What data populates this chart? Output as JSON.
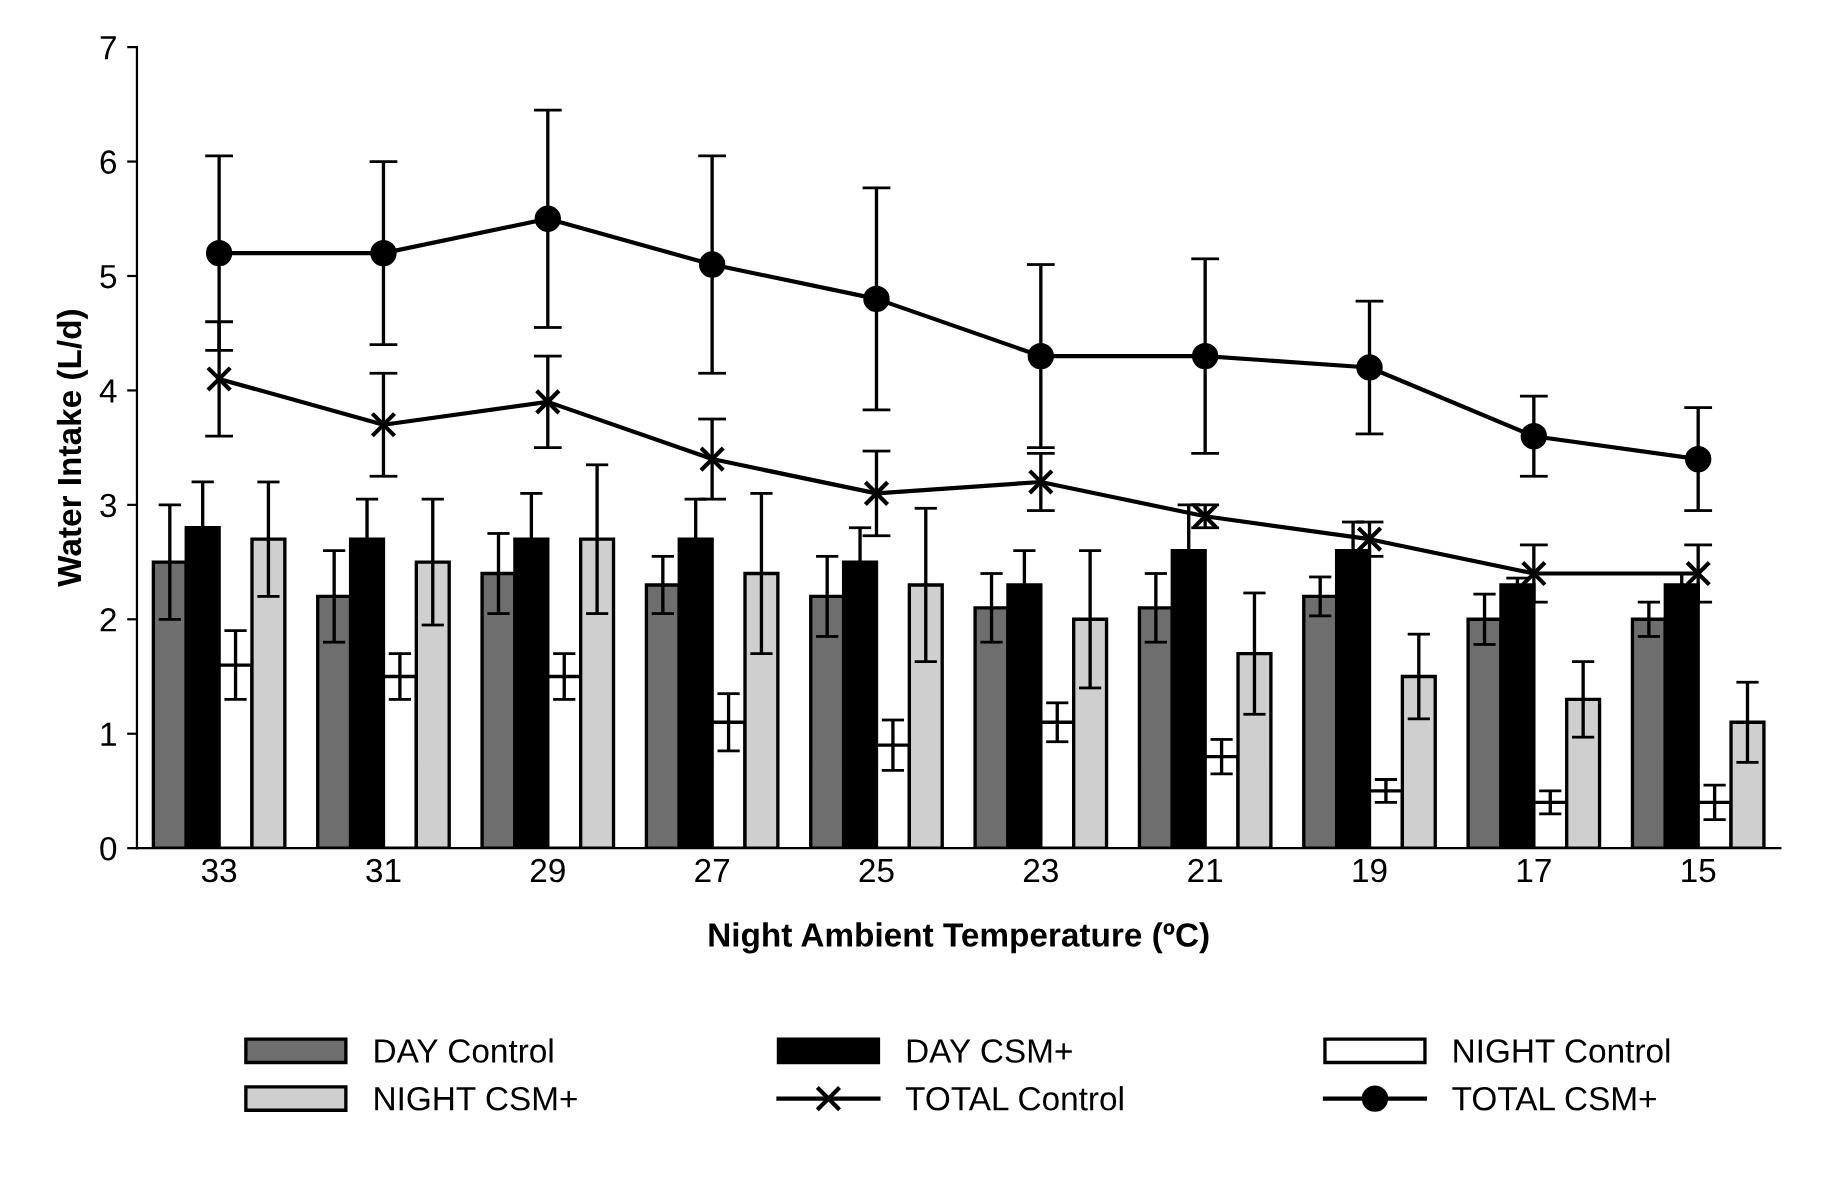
{
  "chart_data": {
    "type": "bar",
    "xlabel": "Night Ambient Temperature (ºC)",
    "ylabel": "Water Intake (L/d)",
    "categories": [
      "33",
      "31",
      "29",
      "27",
      "25",
      "23",
      "21",
      "19",
      "17",
      "15"
    ],
    "ylim": [
      0,
      7
    ],
    "yticks": [
      0,
      1,
      2,
      3,
      4,
      5,
      6,
      7
    ],
    "grid": false,
    "legend": "bottom",
    "series": [
      {
        "name": "DAY Control",
        "color": "#6e6e6e",
        "values": [
          2.5,
          2.2,
          2.4,
          2.3,
          2.2,
          2.1,
          2.1,
          2.2,
          2.0,
          2.0
        ],
        "errors": [
          0.5,
          0.4,
          0.35,
          0.25,
          0.35,
          0.3,
          0.3,
          0.17,
          0.22,
          0.15
        ]
      },
      {
        "name": "DAY CSM+",
        "color": "#000000",
        "values": [
          2.8,
          2.7,
          2.7,
          2.7,
          2.5,
          2.3,
          2.6,
          2.6,
          2.3,
          2.3
        ],
        "errors": [
          0.4,
          0.35,
          0.4,
          0.35,
          0.3,
          0.3,
          0.4,
          0.25,
          0.06,
          0.1
        ]
      },
      {
        "name": "NIGHT Control",
        "color": "#ffffff",
        "values": [
          1.6,
          1.5,
          1.5,
          1.1,
          0.9,
          1.1,
          0.8,
          0.5,
          0.4,
          0.4
        ],
        "errors": [
          0.3,
          0.2,
          0.2,
          0.25,
          0.22,
          0.17,
          0.15,
          0.1,
          0.1,
          0.15
        ]
      },
      {
        "name": "NIGHT CSM+",
        "color": "#cfcfcf",
        "values": [
          2.7,
          2.5,
          2.7,
          2.4,
          2.3,
          2.0,
          1.7,
          1.5,
          1.3,
          1.1
        ],
        "errors": [
          0.5,
          0.55,
          0.65,
          0.7,
          0.67,
          0.6,
          0.53,
          0.37,
          0.33,
          0.35
        ]
      },
      {
        "name": "TOTAL Control",
        "type": "line",
        "color": "#000000",
        "marker": "cross",
        "line_style": "solid",
        "values": [
          4.1,
          3.7,
          3.9,
          3.4,
          3.1,
          3.2,
          2.9,
          2.7,
          2.4,
          2.4
        ],
        "errors": [
          0.5,
          0.45,
          0.4,
          0.35,
          0.37,
          0.25,
          0.1,
          0.15,
          0.25,
          0.25
        ]
      },
      {
        "name": "TOTAL CSM+",
        "type": "line",
        "color": "#000000",
        "marker": "circle",
        "line_style": "solid",
        "values": [
          5.2,
          5.2,
          5.5,
          5.1,
          4.8,
          4.3,
          4.3,
          4.2,
          3.6,
          3.4
        ],
        "errors": [
          0.85,
          0.8,
          0.95,
          0.95,
          0.97,
          0.8,
          0.85,
          0.58,
          0.35,
          0.45
        ]
      }
    ]
  }
}
